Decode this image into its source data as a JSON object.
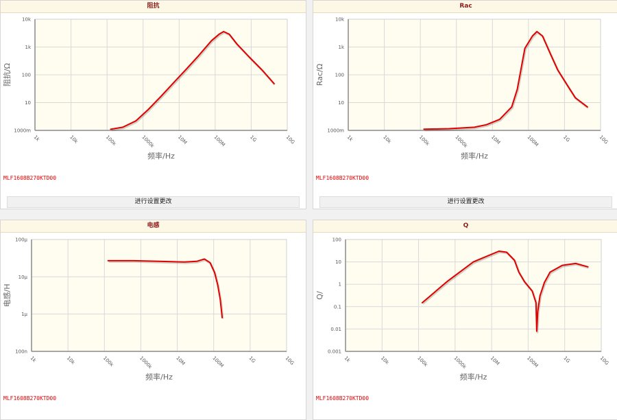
{
  "part_number": "MLF1608B270KTD00",
  "settings_button_label": "进行设置更改",
  "colors": {
    "curve": "#e00000",
    "plot_bg": "#fffdf0",
    "grid": "#d9d9d9",
    "header_bg": "#fdf8e5",
    "title": "#8b1c1c"
  },
  "chart_data": [
    {
      "type": "line",
      "title": "阻抗",
      "xlabel": "频率/Hz",
      "ylabel": "阻抗/Ω",
      "x_scale": "log",
      "y_scale": "log",
      "xlim": [
        1,
        10000000000
      ],
      "ylim": [
        1,
        10000
      ],
      "x_ticks": [
        "1k",
        "10k",
        "100k",
        "1000k",
        "10M",
        "100M",
        "1G",
        "10G"
      ],
      "y_ticks": [
        "1000m",
        "10",
        "100",
        "1k",
        "10k"
      ],
      "grid": true,
      "series": [
        {
          "x": [
            1000,
            3000,
            10000,
            30000,
            100000,
            300000,
            1000000,
            3000000,
            10000000,
            20000000,
            30000000,
            50000000,
            100000000,
            300000000,
            1000000000,
            3000000000
          ],
          "y": [
            1.1,
            1.3,
            2.2,
            5.5,
            17,
            50,
            160,
            480,
            1700,
            2900,
            3600,
            2900,
            1300,
            450,
            150,
            48
          ]
        }
      ]
    },
    {
      "type": "line",
      "title": "Rac",
      "xlabel": "频率/Hz",
      "ylabel": "Rac/Ω",
      "x_scale": "log",
      "y_scale": "log",
      "xlim": [
        1,
        10000000000
      ],
      "ylim": [
        1,
        10000
      ],
      "x_ticks": [
        "1k",
        "10k",
        "100k",
        "1000k",
        "10M",
        "100M",
        "1G",
        "10G"
      ],
      "y_ticks": [
        "1000m",
        "10",
        "100",
        "1k",
        "10k"
      ],
      "grid": true,
      "series": [
        {
          "x": [
            1000,
            10000,
            100000,
            300000,
            1000000,
            3000000,
            5000000,
            10000000,
            20000000,
            30000000,
            50000000,
            100000000,
            200000000,
            500000000,
            1000000000,
            3000000000
          ],
          "y": [
            1.1,
            1.15,
            1.3,
            1.6,
            2.5,
            7,
            30,
            900,
            2500,
            3600,
            2500,
            600,
            150,
            40,
            15,
            7
          ]
        }
      ]
    },
    {
      "type": "line",
      "title": "电感",
      "xlabel": "频率/Hz",
      "ylabel": "电感/H",
      "x_scale": "log",
      "y_scale": "log",
      "xlim": [
        1,
        10000000000
      ],
      "ylim": [
        1e-07,
        0.0001
      ],
      "x_ticks": [
        "1k",
        "10k",
        "100k",
        "1000k",
        "10M",
        "100M",
        "1G",
        "10G"
      ],
      "y_ticks": [
        "100n",
        "1μ",
        "10μ",
        "100μ"
      ],
      "grid": true,
      "series": [
        {
          "x": [
            1000,
            10000,
            100000,
            1000000,
            3000000,
            6000000,
            10000000,
            15000000,
            20000000,
            25000000,
            30000000
          ],
          "y": [
            2.7e-05,
            2.7e-05,
            2.6e-05,
            2.5e-05,
            2.6e-05,
            3e-05,
            2.4e-05,
            1.3e-05,
            6e-06,
            2.5e-06,
            8e-07
          ]
        }
      ]
    },
    {
      "type": "line",
      "title": "Q",
      "xlabel": "频率/Hz",
      "ylabel": "Q/",
      "x_scale": "log",
      "y_scale": "log",
      "xlim": [
        1,
        10000000000
      ],
      "ylim": [
        0.001,
        100
      ],
      "x_ticks": [
        "1k",
        "10k",
        "100k",
        "1000k",
        "10M",
        "100M",
        "1G",
        "10G"
      ],
      "y_ticks": [
        "0.001",
        "0.01",
        "0.1",
        "1",
        "10",
        "100"
      ],
      "grid": true,
      "series": [
        {
          "x": [
            1000,
            10000,
            100000,
            1000000,
            2000000,
            4000000,
            6000000,
            10000000,
            20000000,
            28000000,
            30000000,
            33000000,
            40000000,
            60000000,
            100000000,
            300000000,
            1000000000,
            3000000000
          ],
          "y": [
            0.15,
            1.4,
            10,
            30,
            27,
            12,
            3.5,
            1.3,
            0.5,
            0.15,
            0.008,
            0.06,
            0.3,
            1.2,
            3.5,
            7,
            8.5,
            6
          ]
        }
      ]
    }
  ]
}
